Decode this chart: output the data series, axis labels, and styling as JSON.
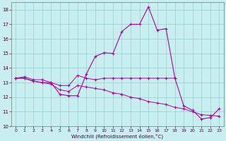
{
  "background_color": "#c8eef0",
  "line_color": "#aa00aa",
  "grid_color": "#99cccc",
  "xlabel": "Windchill (Refroidissement éolien,°C)",
  "xlim_min": -0.5,
  "xlim_max": 23.5,
  "ylim_min": 10.0,
  "ylim_max": 18.5,
  "yticks": [
    10,
    11,
    12,
    13,
    14,
    15,
    16,
    17,
    18
  ],
  "xticks": [
    0,
    1,
    2,
    3,
    4,
    5,
    6,
    7,
    8,
    9,
    10,
    11,
    12,
    13,
    14,
    15,
    16,
    17,
    18,
    19,
    20,
    21,
    22,
    23
  ],
  "curve_x": [
    0,
    1,
    2,
    3,
    4,
    5,
    6,
    7,
    8,
    9,
    10,
    11,
    12,
    13,
    14,
    15,
    16,
    17,
    18,
    19,
    20,
    21,
    22,
    23
  ],
  "curve_y": [
    13.3,
    13.3,
    13.1,
    13.0,
    13.0,
    12.2,
    12.1,
    12.1,
    13.6,
    14.8,
    15.05,
    15.0,
    16.5,
    17.0,
    17.0,
    18.2,
    16.6,
    16.7,
    13.3,
    11.4,
    11.1,
    10.5,
    10.6,
    11.2
  ],
  "flat_x": [
    0,
    1,
    2,
    3,
    4,
    5,
    6,
    7,
    8,
    9,
    10,
    11,
    12,
    13,
    14,
    15,
    16,
    17,
    18
  ],
  "flat_y": [
    13.3,
    13.4,
    13.2,
    13.2,
    13.0,
    12.8,
    12.8,
    13.5,
    13.3,
    13.2,
    13.3,
    13.3,
    13.3,
    13.3,
    13.3,
    13.3,
    13.3,
    13.3,
    13.3
  ],
  "decline_x": [
    0,
    1,
    2,
    3,
    4,
    5,
    6,
    7,
    8,
    9,
    10,
    11,
    12,
    13,
    14,
    15,
    16,
    17,
    18,
    19,
    20,
    21,
    22,
    23
  ],
  "decline_y": [
    13.3,
    13.3,
    13.1,
    13.0,
    12.9,
    12.5,
    12.4,
    12.8,
    12.7,
    12.6,
    12.5,
    12.3,
    12.2,
    12.0,
    11.9,
    11.7,
    11.6,
    11.5,
    11.3,
    11.2,
    11.0,
    10.8,
    10.75,
    10.7
  ]
}
